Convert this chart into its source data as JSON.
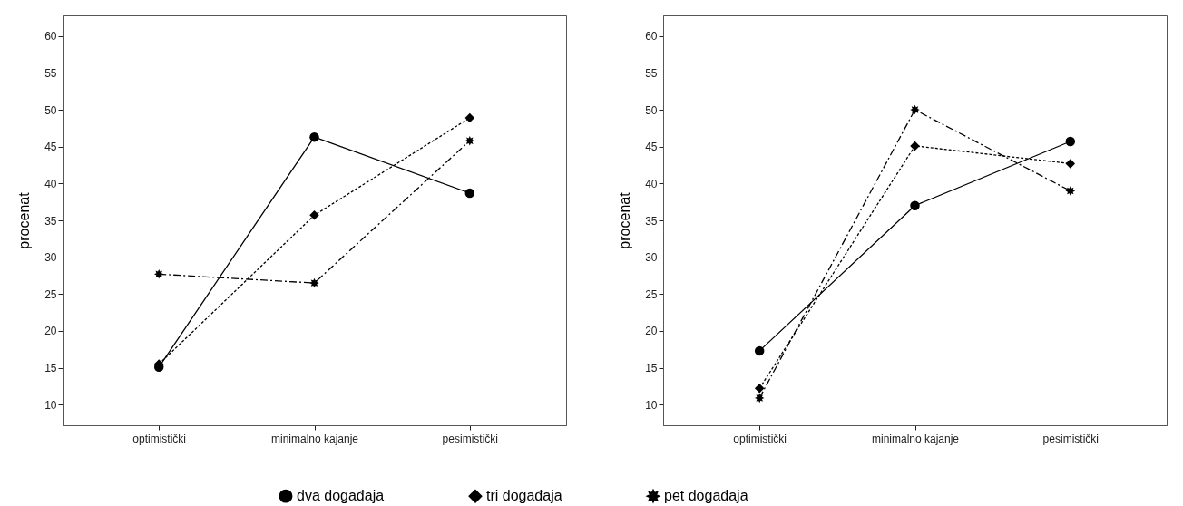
{
  "chart_data": [
    {
      "type": "line",
      "ylabel": "procenat",
      "categories": [
        "optimistički",
        "minimalno kajanje",
        "pesimistički"
      ],
      "ylim": [
        7.2,
        62.8
      ],
      "yticks": [
        10,
        15,
        20,
        25,
        30,
        35,
        40,
        45,
        50,
        55,
        60
      ],
      "grid": false,
      "legend": "bottom",
      "series": [
        {
          "name": "dva događaja",
          "color": "#000000",
          "marker": "circle",
          "line_style": "solid",
          "values": [
            15.1,
            46.3,
            38.7
          ]
        },
        {
          "name": "tri događaja",
          "color": "#000000",
          "marker": "diamond",
          "line_style": "dotted",
          "values": [
            15.5,
            35.7,
            48.9
          ]
        },
        {
          "name": "pet događaja",
          "color": "#000000",
          "marker": "star",
          "line_style": "dashdot",
          "values": [
            27.7,
            26.5,
            45.8
          ]
        }
      ]
    },
    {
      "type": "line",
      "ylabel": "procenat",
      "categories": [
        "optimistički",
        "minimalno kajanje",
        "pesimistički"
      ],
      "ylim": [
        7.2,
        62.8
      ],
      "yticks": [
        10,
        15,
        20,
        25,
        30,
        35,
        40,
        45,
        50,
        55,
        60
      ],
      "grid": false,
      "series": [
        {
          "color": "#000000",
          "marker": "circle",
          "line_style": "solid",
          "values": [
            17.3,
            37.0,
            45.7
          ]
        },
        {
          "color": "#000000",
          "marker": "diamond",
          "line_style": "dotted",
          "values": [
            12.2,
            45.1,
            42.7
          ]
        },
        {
          "color": "#000000",
          "marker": "star",
          "line_style": "dashdot",
          "values": [
            10.9,
            50.0,
            39.0
          ]
        }
      ]
    }
  ]
}
